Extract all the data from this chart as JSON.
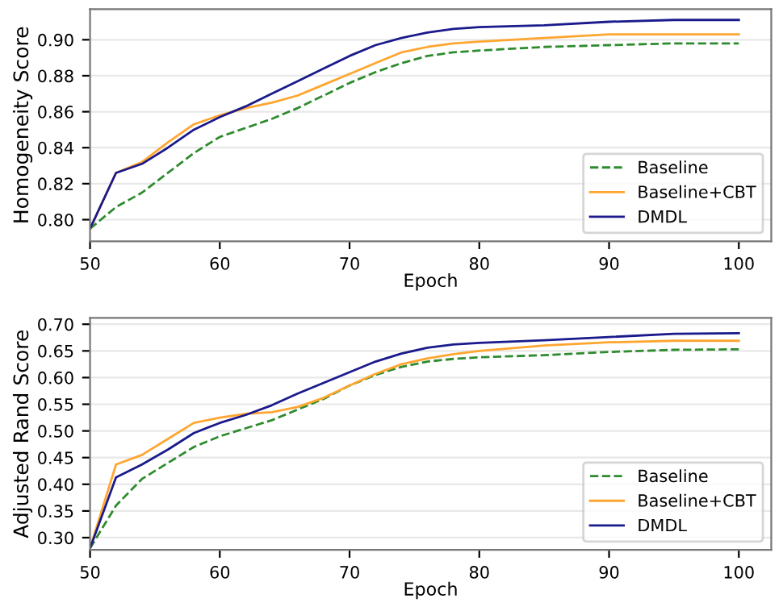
{
  "chart_data": [
    {
      "type": "line",
      "xlabel": "Epoch",
      "ylabel": "Homogeneity Score",
      "x": [
        50,
        52,
        54,
        56,
        58,
        60,
        62,
        64,
        66,
        68,
        70,
        72,
        74,
        76,
        78,
        80,
        85,
        90,
        95,
        100
      ],
      "xlim": [
        50,
        102.5
      ],
      "xticks": [
        50,
        60,
        70,
        80,
        90,
        100
      ],
      "ylim": [
        0.788,
        0.917
      ],
      "yticks": [
        {
          "value": 0.8,
          "label": "0.80"
        },
        {
          "value": 0.82,
          "label": "0.82"
        },
        {
          "value": 0.84,
          "label": "0.84"
        },
        {
          "value": 0.86,
          "label": "0.86"
        },
        {
          "value": 0.88,
          "label": "0.88"
        },
        {
          "value": 0.9,
          "label": "0.90"
        }
      ],
      "grid": "y",
      "legend": "bottom right",
      "series": [
        {
          "name": "Baseline",
          "color": "#2e8b2e",
          "line_style": "dashed",
          "values": [
            0.795,
            0.807,
            0.815,
            0.826,
            0.837,
            0.846,
            0.851,
            0.856,
            0.862,
            0.869,
            0.876,
            0.882,
            0.887,
            0.891,
            0.893,
            0.894,
            0.896,
            0.897,
            0.898,
            0.898
          ]
        },
        {
          "name": "Baseline+CBT",
          "color": "#ffa630",
          "line_style": "solid",
          "values": [
            0.795,
            0.826,
            0.832,
            0.843,
            0.853,
            0.858,
            0.862,
            0.865,
            0.869,
            0.875,
            0.881,
            0.887,
            0.893,
            0.896,
            0.898,
            0.899,
            0.901,
            0.903,
            0.903,
            0.903
          ]
        },
        {
          "name": "DMDL",
          "color": "#1a1a8c",
          "line_style": "solid",
          "values": [
            0.795,
            0.826,
            0.831,
            0.84,
            0.85,
            0.857,
            0.863,
            0.87,
            0.877,
            0.884,
            0.891,
            0.897,
            0.901,
            0.904,
            0.906,
            0.907,
            0.908,
            0.91,
            0.911,
            0.911
          ]
        }
      ]
    },
    {
      "type": "line",
      "xlabel": "Epoch",
      "ylabel": "Adjusted Rand Score",
      "x": [
        50,
        52,
        54,
        56,
        58,
        60,
        62,
        64,
        66,
        68,
        70,
        72,
        74,
        76,
        78,
        80,
        85,
        90,
        95,
        100
      ],
      "xlim": [
        50,
        102.5
      ],
      "xticks": [
        50,
        60,
        70,
        80,
        90,
        100
      ],
      "ylim": [
        0.277,
        0.712
      ],
      "yticks": [
        {
          "value": 0.3,
          "label": "0.30"
        },
        {
          "value": 0.35,
          "label": "0.35"
        },
        {
          "value": 0.4,
          "label": "0.40"
        },
        {
          "value": 0.45,
          "label": "0.45"
        },
        {
          "value": 0.5,
          "label": "0.50"
        },
        {
          "value": 0.55,
          "label": "0.55"
        },
        {
          "value": 0.6,
          "label": "0.60"
        },
        {
          "value": 0.65,
          "label": "0.65"
        },
        {
          "value": 0.7,
          "label": "0.70"
        }
      ],
      "grid": "y",
      "legend": "bottom right",
      "series": [
        {
          "name": "Baseline",
          "color": "#2e8b2e",
          "line_style": "dashed",
          "values": [
            0.28,
            0.36,
            0.41,
            0.44,
            0.47,
            0.49,
            0.505,
            0.52,
            0.54,
            0.56,
            0.585,
            0.605,
            0.62,
            0.63,
            0.635,
            0.638,
            0.642,
            0.648,
            0.652,
            0.653
          ]
        },
        {
          "name": "Baseline+CBT",
          "color": "#ffa630",
          "line_style": "solid",
          "values": [
            0.28,
            0.437,
            0.455,
            0.485,
            0.515,
            0.525,
            0.532,
            0.535,
            0.545,
            0.562,
            0.585,
            0.607,
            0.625,
            0.636,
            0.644,
            0.65,
            0.66,
            0.666,
            0.669,
            0.669
          ]
        },
        {
          "name": "DMDL",
          "color": "#1a1a8c",
          "line_style": "solid",
          "values": [
            0.28,
            0.413,
            0.437,
            0.465,
            0.496,
            0.515,
            0.53,
            0.548,
            0.57,
            0.59,
            0.61,
            0.63,
            0.645,
            0.656,
            0.662,
            0.665,
            0.67,
            0.676,
            0.682,
            0.683
          ]
        }
      ]
    }
  ]
}
